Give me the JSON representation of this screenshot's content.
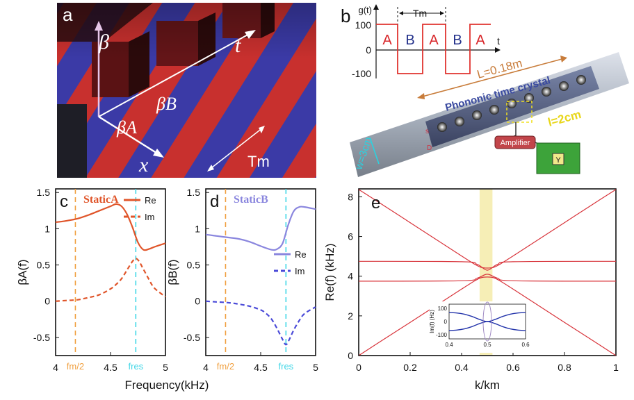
{
  "panels": {
    "a": {
      "letter": "a",
      "beta": "β",
      "beta_a": "βA",
      "beta_b": "βB",
      "x": "x",
      "t": "t",
      "tm": "Tm"
    },
    "b": {
      "letter": "b",
      "gt": "g(t)",
      "tm": "Tm",
      "t": "t",
      "segments": [
        "A",
        "B",
        "A",
        "B",
        "A"
      ],
      "yticks": [
        "100",
        "0",
        "-100"
      ],
      "length": "L=0.18m",
      "title": "Phononic time crystal",
      "cell": "l=2cm",
      "width": "w=3cm",
      "amplifier": "Amplifier",
      "chip": "Y",
      "side_labels": [
        "s",
        "D"
      ]
    }
  },
  "chart_data": [
    {
      "panel": "c",
      "type": "line",
      "title": "StaticA",
      "xlabel": "Frequency(kHz)",
      "ylabel": "βA(f)",
      "xlim": [
        4,
        5
      ],
      "ylim": [
        -0.75,
        1.55
      ],
      "xticks": [
        "4",
        "4.5",
        "5"
      ],
      "yticks": [
        "1.5",
        "1",
        "0.5",
        "0",
        "-0.5"
      ],
      "vlines": [
        {
          "x": 4.18,
          "label": "fm/2",
          "color": "#f0a040"
        },
        {
          "x": 4.73,
          "label": "fres",
          "color": "#3fd6e6"
        }
      ],
      "series": [
        {
          "name": "Re",
          "color": "#e0552a",
          "dash": false,
          "x": [
            4.0,
            4.1,
            4.2,
            4.3,
            4.4,
            4.5,
            4.55,
            4.6,
            4.65,
            4.7,
            4.75,
            4.8,
            4.85,
            4.9,
            5.0
          ],
          "y": [
            1.09,
            1.11,
            1.14,
            1.19,
            1.25,
            1.31,
            1.34,
            1.31,
            1.2,
            1.02,
            0.81,
            0.71,
            0.72,
            0.75,
            0.8
          ]
        },
        {
          "name": "Im",
          "color": "#e0552a",
          "dash": true,
          "x": [
            4.0,
            4.1,
            4.2,
            4.3,
            4.4,
            4.5,
            4.55,
            4.6,
            4.65,
            4.7,
            4.73,
            4.76,
            4.8,
            4.85,
            4.9,
            5.0
          ],
          "y": [
            0.0,
            0.01,
            0.02,
            0.05,
            0.09,
            0.17,
            0.23,
            0.31,
            0.43,
            0.55,
            0.59,
            0.55,
            0.44,
            0.3,
            0.18,
            0.06
          ]
        }
      ]
    },
    {
      "panel": "d",
      "type": "line",
      "title": "StaticB",
      "xlabel": "Frequency(kHz)",
      "ylabel": "βB(f)",
      "xlim": [
        4,
        5
      ],
      "ylim": [
        -0.75,
        1.55
      ],
      "xticks": [
        "4",
        "4.5",
        "5"
      ],
      "yticks": [
        "1.5",
        "1",
        "0.5",
        "0",
        "-0.5"
      ],
      "vlines": [
        {
          "x": 4.18,
          "label": "fm/2",
          "color": "#f0a040"
        },
        {
          "x": 4.73,
          "label": "fres",
          "color": "#3fd6e6"
        }
      ],
      "series": [
        {
          "name": "Re",
          "color": "#8a86de",
          "dash": false,
          "x": [
            4.0,
            4.1,
            4.2,
            4.3,
            4.4,
            4.5,
            4.6,
            4.65,
            4.7,
            4.75,
            4.8,
            4.85,
            4.9,
            5.0
          ],
          "y": [
            0.92,
            0.9,
            0.88,
            0.86,
            0.82,
            0.76,
            0.71,
            0.72,
            0.8,
            1.05,
            1.24,
            1.3,
            1.3,
            1.27
          ]
        },
        {
          "name": "Im",
          "color": "#4a4ad8",
          "dash": true,
          "x": [
            4.0,
            4.1,
            4.2,
            4.3,
            4.4,
            4.5,
            4.55,
            4.6,
            4.65,
            4.7,
            4.73,
            4.76,
            4.8,
            4.85,
            4.9,
            5.0
          ],
          "y": [
            0.0,
            -0.01,
            -0.02,
            -0.04,
            -0.07,
            -0.12,
            -0.17,
            -0.25,
            -0.38,
            -0.53,
            -0.6,
            -0.53,
            -0.4,
            -0.27,
            -0.17,
            -0.08
          ]
        }
      ]
    },
    {
      "panel": "e",
      "type": "line",
      "title": "",
      "xlabel": "k/km",
      "ylabel": "Re(f) (kHz)",
      "xlim": [
        0,
        1
      ],
      "ylim": [
        0,
        8.4
      ],
      "xticks": [
        "0",
        "0.2",
        "0.4",
        "0.6",
        "0.8",
        "1"
      ],
      "yticks": [
        "8",
        "6",
        "4",
        "2",
        "0"
      ],
      "highlight": {
        "x": [
          0.47,
          0.52
        ],
        "color": "#f6eeb6"
      },
      "bands": [
        {
          "name": "",
          "color": "#d8333a",
          "x": [
            0,
            0.1,
            0.2,
            0.3,
            0.4,
            0.45,
            0.475,
            0.5,
            0.525,
            0.55,
            0.6,
            0.7,
            0.8,
            0.9,
            1.0
          ],
          "y": [
            8.37,
            7.54,
            6.7,
            5.86,
            5.02,
            4.61,
            4.45,
            4.41,
            4.45,
            4.61,
            5.02,
            5.86,
            6.7,
            7.54,
            8.37
          ]
        },
        {
          "name": "",
          "color": "#d8333a",
          "x": [
            0,
            0.1,
            0.2,
            0.3,
            0.4,
            0.45,
            0.475,
            0.5,
            0.525,
            0.55,
            0.6,
            0.7,
            0.8,
            0.9,
            1.0
          ],
          "y": [
            0,
            0.84,
            1.67,
            2.51,
            3.35,
            3.76,
            3.92,
            3.96,
            3.92,
            3.76,
            3.35,
            2.51,
            1.67,
            0.84,
            0
          ]
        },
        {
          "name": "",
          "color": "#d8333a",
          "x": [
            0,
            0.4,
            0.46,
            0.5,
            0.54,
            0.6,
            1.0
          ],
          "y": [
            4.75,
            4.73,
            4.6,
            4.3,
            4.6,
            4.73,
            4.75
          ]
        },
        {
          "name": "",
          "color": "#d8333a",
          "x": [
            0,
            0.4,
            0.46,
            0.5,
            0.54,
            0.6,
            1.0
          ],
          "y": [
            3.75,
            3.77,
            3.9,
            4.1,
            3.9,
            3.77,
            3.75
          ]
        }
      ],
      "inset": {
        "xlabel": "",
        "ylabel": "Im(f) (Hz)",
        "xlim": [
          0.4,
          0.6
        ],
        "ylim": [
          -130,
          130
        ],
        "xticks": [
          "0.4",
          "0.5",
          "0.6"
        ],
        "yticks": [
          "100",
          "0",
          "-100"
        ],
        "color": "#2233aa",
        "x": [
          0.4,
          0.42,
          0.44,
          0.46,
          0.48,
          0.5,
          0.52,
          0.54,
          0.56,
          0.58,
          0.6
        ],
        "y": [
          68,
          64,
          55,
          38,
          15,
          0,
          15,
          38,
          55,
          64,
          68
        ]
      }
    }
  ]
}
